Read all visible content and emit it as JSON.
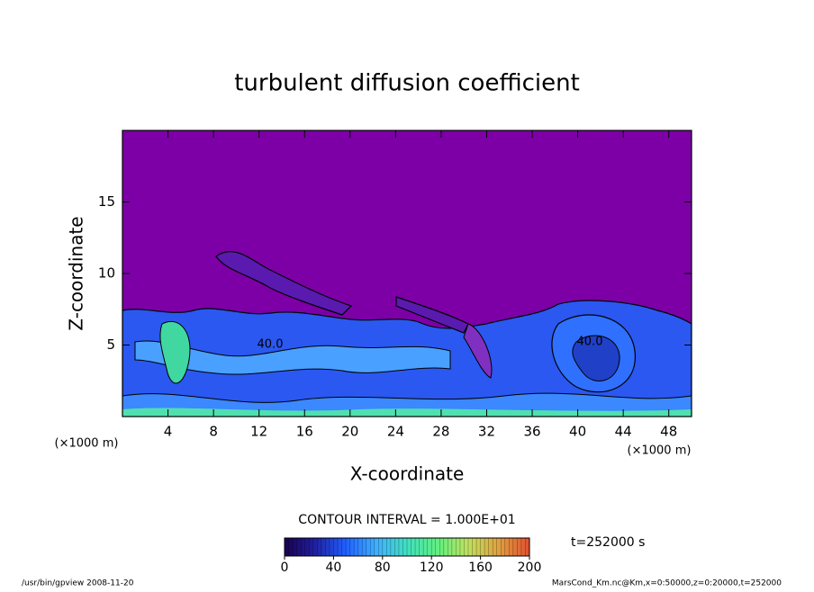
{
  "chart_data": {
    "type": "contour",
    "title": "turbulent diffusion coefficient",
    "xlabel": "X-coordinate",
    "ylabel": "Z-coordinate",
    "xunit": "(×1000 m)",
    "yunit": "(×1000 m)",
    "xlim": [
      0,
      50
    ],
    "xticks": [
      4,
      8,
      12,
      16,
      20,
      24,
      28,
      32,
      36,
      40,
      44,
      48
    ],
    "ylim": [
      0,
      20
    ],
    "yticks": [
      5,
      10,
      15
    ],
    "contour_labels": [
      "40.0",
      "40.0"
    ],
    "contour_interval": "CONTOUR INTERVAL = 1.000E+01",
    "colorbar": {
      "clim": [
        0,
        200
      ],
      "ticks": [
        0,
        40,
        80,
        120,
        160,
        200
      ],
      "colormap": [
        "#1a0050",
        "#2020a0",
        "#2060ff",
        "#40b0ff",
        "#40e0c0",
        "#60f080",
        "#c0e060",
        "#e0a040",
        "#e05030"
      ]
    },
    "time": "t=252000 s",
    "footer_left": "/usr/bin/gpview  2008-11-20",
    "footer_right": "MarsCond_Km.nc@Km,x=0:50000,z=0:20000,t=252000"
  }
}
